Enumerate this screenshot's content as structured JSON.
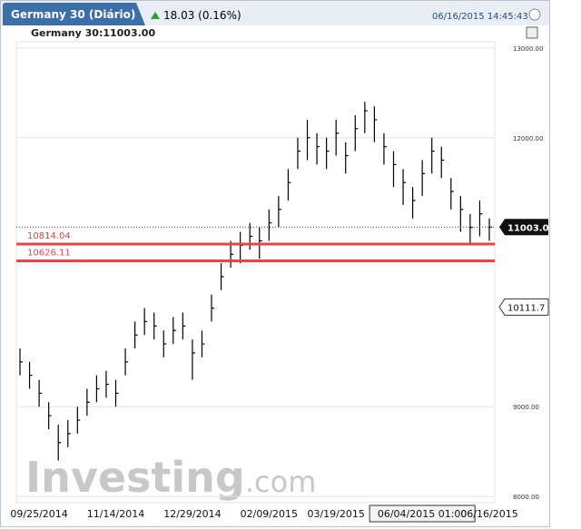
{
  "header": {
    "tab": "Germany 30 (Diário)",
    "change": "18.03 (0.16%)",
    "timestamp": "06/16/2015 14:45:43",
    "instrument": "Germany 30:11003.00"
  },
  "watermark_brand": "Investing",
  "watermark_suffix": ".com",
  "chart_data": {
    "type": "ohlc",
    "color": "#000000",
    "categories": [
      null,
      null,
      "09/25/2014",
      null,
      null,
      null,
      null,
      null,
      null,
      null,
      "11/14/2014",
      null,
      null,
      null,
      null,
      null,
      null,
      null,
      "12/29/2014",
      null,
      null,
      null,
      null,
      null,
      null,
      null,
      "02/09/2015",
      null,
      null,
      null,
      null,
      null,
      null,
      "03/19/2015",
      null,
      null,
      null,
      null,
      null,
      null,
      null,
      null,
      "06/04/2015 01:00",
      null,
      null,
      null,
      null,
      null,
      null,
      "06/16/2015"
    ],
    "high": [
      9650,
      9500,
      9300,
      9050,
      8800,
      8850,
      9000,
      9200,
      9350,
      9400,
      9300,
      9650,
      9950,
      10100,
      10050,
      9850,
      10000,
      10050,
      9750,
      9850,
      10250,
      10600,
      10850,
      10950,
      11050,
      11000,
      11200,
      11350,
      11650,
      12000,
      12200,
      12050,
      12000,
      12200,
      11950,
      12250,
      12400,
      12350,
      12050,
      11850,
      11650,
      11450,
      11750,
      12000,
      11900,
      11550,
      11350,
      11150,
      11300,
      11100
    ],
    "low": [
      9350,
      9200,
      9000,
      8750,
      8400,
      8550,
      8700,
      8900,
      9050,
      9100,
      9000,
      9350,
      9650,
      9800,
      9750,
      9550,
      9700,
      9750,
      9300,
      9550,
      9950,
      10300,
      10550,
      10600,
      10750,
      10650,
      10850,
      11000,
      11300,
      11650,
      11750,
      11700,
      11650,
      11800,
      11600,
      11850,
      12050,
      11950,
      11700,
      11450,
      11250,
      11100,
      11350,
      11600,
      11550,
      11200,
      10950,
      10800,
      10900,
      10850
    ],
    "close": [
      9500,
      9350,
      9150,
      8900,
      8600,
      8700,
      8850,
      9050,
      9200,
      9250,
      9150,
      9500,
      9800,
      9950,
      9900,
      9700,
      9850,
      9900,
      9600,
      9700,
      10100,
      10450,
      10700,
      10800,
      10900,
      10850,
      11050,
      11200,
      11500,
      11850,
      12000,
      11900,
      11850,
      12050,
      11800,
      12100,
      12300,
      12200,
      11900,
      11700,
      11500,
      11300,
      11600,
      11850,
      11750,
      11400,
      11200,
      11000,
      11150,
      11003
    ],
    "ylim": [
      7930,
      13070
    ],
    "yticks": [
      {
        "value": 13000,
        "label": "13000.00"
      },
      {
        "value": 12000,
        "label": "12000.00"
      },
      {
        "value": 9000,
        "label": "9000.00"
      },
      {
        "value": 8000,
        "label": "8000.00"
      }
    ],
    "grid": true,
    "ref_lines": [
      {
        "value": 10814.04,
        "label": "10814.04",
        "color": "#e8434a"
      },
      {
        "value": 10626.11,
        "label": "10626.11",
        "color": "#e8434a"
      }
    ],
    "last": {
      "value": 11003,
      "label": "11003.0"
    },
    "crosshair": 10111.7
  }
}
